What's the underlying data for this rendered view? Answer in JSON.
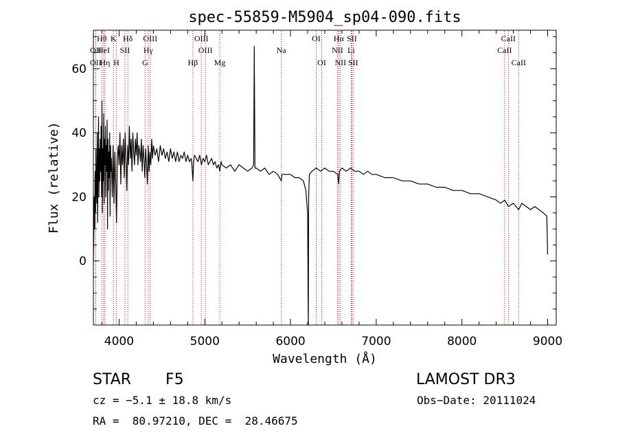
{
  "chart_data": {
    "type": "line",
    "title": "spec-55859-M5904_sp04-090.fits",
    "xlabel": "Wavelength (Å)",
    "ylabel": "Flux (relative)",
    "xlim": [
      3700,
      9100
    ],
    "ylim": [
      -20,
      72
    ],
    "xticks": [
      4000,
      5000,
      6000,
      7000,
      8000,
      9000
    ],
    "yticks": [
      0,
      20,
      40,
      60
    ],
    "series": [
      {
        "name": "spectrum",
        "points": [
          [
            3700,
            0
          ],
          [
            3705,
            8
          ],
          [
            3710,
            20
          ],
          [
            3715,
            10
          ],
          [
            3720,
            28
          ],
          [
            3725,
            15
          ],
          [
            3730,
            35
          ],
          [
            3735,
            22
          ],
          [
            3740,
            18
          ],
          [
            3745,
            40
          ],
          [
            3750,
            12
          ],
          [
            3755,
            30
          ],
          [
            3760,
            45
          ],
          [
            3765,
            20
          ],
          [
            3770,
            35
          ],
          [
            3775,
            25
          ],
          [
            3780,
            38
          ],
          [
            3785,
            28
          ],
          [
            3790,
            42
          ],
          [
            3795,
            20
          ],
          [
            3800,
            50
          ],
          [
            3805,
            15
          ],
          [
            3810,
            35
          ],
          [
            3815,
            25
          ],
          [
            3820,
            46
          ],
          [
            3825,
            18
          ],
          [
            3830,
            38
          ],
          [
            3835,
            30
          ],
          [
            3840,
            42
          ],
          [
            3845,
            20
          ],
          [
            3850,
            36
          ],
          [
            3855,
            28
          ],
          [
            3860,
            44
          ],
          [
            3865,
            10
          ],
          [
            3870,
            38
          ],
          [
            3875,
            22
          ],
          [
            3880,
            34
          ],
          [
            3885,
            26
          ],
          [
            3890,
            40
          ],
          [
            3895,
            14
          ],
          [
            3900,
            36
          ],
          [
            3905,
            28
          ],
          [
            3910,
            32
          ],
          [
            3920,
            20
          ],
          [
            3930,
            36
          ],
          [
            3940,
            18
          ],
          [
            3950,
            34
          ],
          [
            3960,
            24
          ],
          [
            3970,
            12
          ],
          [
            3980,
            32
          ],
          [
            3990,
            36
          ],
          [
            4000,
            30
          ],
          [
            4010,
            40
          ],
          [
            4020,
            24
          ],
          [
            4030,
            36
          ],
          [
            4040,
            30
          ],
          [
            4050,
            38
          ],
          [
            4060,
            26
          ],
          [
            4070,
            40
          ],
          [
            4080,
            32
          ],
          [
            4090,
            22
          ],
          [
            4100,
            36
          ],
          [
            4110,
            30
          ],
          [
            4120,
            42
          ],
          [
            4130,
            32
          ],
          [
            4140,
            38
          ],
          [
            4150,
            28
          ],
          [
            4160,
            40
          ],
          [
            4170,
            34
          ],
          [
            4180,
            30
          ],
          [
            4190,
            38
          ],
          [
            4200,
            33
          ],
          [
            4210,
            40
          ],
          [
            4220,
            30
          ],
          [
            4230,
            36
          ],
          [
            4240,
            34
          ],
          [
            4250,
            31
          ],
          [
            4260,
            38
          ],
          [
            4270,
            28
          ],
          [
            4280,
            36
          ],
          [
            4290,
            32
          ],
          [
            4300,
            26
          ],
          [
            4310,
            35
          ],
          [
            4320,
            30
          ],
          [
            4330,
            24
          ],
          [
            4340,
            36
          ],
          [
            4350,
            28
          ],
          [
            4360,
            34
          ],
          [
            4370,
            30
          ],
          [
            4380,
            38
          ],
          [
            4390,
            32
          ],
          [
            4400,
            36
          ],
          [
            4420,
            33
          ],
          [
            4440,
            35
          ],
          [
            4460,
            31
          ],
          [
            4480,
            36
          ],
          [
            4500,
            33
          ],
          [
            4520,
            35
          ],
          [
            4540,
            32
          ],
          [
            4560,
            34
          ],
          [
            4580,
            31
          ],
          [
            4600,
            35
          ],
          [
            4620,
            32
          ],
          [
            4640,
            34
          ],
          [
            4660,
            31
          ],
          [
            4680,
            34
          ],
          [
            4700,
            31
          ],
          [
            4720,
            33
          ],
          [
            4740,
            32
          ],
          [
            4760,
            34
          ],
          [
            4780,
            31
          ],
          [
            4800,
            33
          ],
          [
            4820,
            31
          ],
          [
            4840,
            32
          ],
          [
            4850,
            30
          ],
          [
            4861,
            25
          ],
          [
            4870,
            31
          ],
          [
            4880,
            33
          ],
          [
            4900,
            32
          ],
          [
            4920,
            31
          ],
          [
            4940,
            33
          ],
          [
            4960,
            30
          ],
          [
            4980,
            32
          ],
          [
            5000,
            31
          ],
          [
            5020,
            33
          ],
          [
            5040,
            30
          ],
          [
            5060,
            31
          ],
          [
            5080,
            32
          ],
          [
            5100,
            30
          ],
          [
            5120,
            31
          ],
          [
            5140,
            29
          ],
          [
            5160,
            30
          ],
          [
            5175,
            28
          ],
          [
            5190,
            31
          ],
          [
            5200,
            30
          ],
          [
            5250,
            29
          ],
          [
            5300,
            30
          ],
          [
            5350,
            28
          ],
          [
            5400,
            30
          ],
          [
            5450,
            29
          ],
          [
            5500,
            28
          ],
          [
            5550,
            29
          ],
          [
            5570,
            30
          ],
          [
            5577,
            67
          ],
          [
            5585,
            29
          ],
          [
            5600,
            29
          ],
          [
            5650,
            28
          ],
          [
            5700,
            29
          ],
          [
            5750,
            27
          ],
          [
            5800,
            28
          ],
          [
            5850,
            27
          ],
          [
            5893,
            25
          ],
          [
            5900,
            27
          ],
          [
            5950,
            27
          ],
          [
            6000,
            27
          ],
          [
            6050,
            26
          ],
          [
            6100,
            26
          ],
          [
            6150,
            25
          ],
          [
            6180,
            22
          ],
          [
            6190,
            18
          ],
          [
            6200,
            15
          ],
          [
            6206,
            -15
          ],
          [
            6208,
            -20
          ],
          [
            6212,
            20
          ],
          [
            6220,
            27
          ],
          [
            6250,
            28
          ],
          [
            6300,
            29
          ],
          [
            6350,
            28
          ],
          [
            6400,
            29
          ],
          [
            6450,
            28
          ],
          [
            6500,
            28
          ],
          [
            6550,
            27
          ],
          [
            6563,
            24
          ],
          [
            6570,
            28
          ],
          [
            6600,
            29
          ],
          [
            6650,
            28
          ],
          [
            6700,
            29
          ],
          [
            6750,
            28
          ],
          [
            6800,
            28
          ],
          [
            6850,
            27
          ],
          [
            6900,
            28
          ],
          [
            6950,
            27
          ],
          [
            7000,
            27
          ],
          [
            7100,
            26
          ],
          [
            7200,
            26
          ],
          [
            7300,
            25
          ],
          [
            7400,
            25
          ],
          [
            7500,
            24
          ],
          [
            7600,
            24
          ],
          [
            7700,
            23
          ],
          [
            7800,
            23
          ],
          [
            7900,
            22
          ],
          [
            8000,
            22
          ],
          [
            8100,
            21
          ],
          [
            8200,
            21
          ],
          [
            8300,
            20
          ],
          [
            8400,
            19
          ],
          [
            8450,
            18
          ],
          [
            8500,
            19
          ],
          [
            8542,
            17
          ],
          [
            8600,
            18
          ],
          [
            8662,
            16
          ],
          [
            8700,
            18
          ],
          [
            8750,
            17
          ],
          [
            8800,
            16
          ],
          [
            8850,
            17
          ],
          [
            8900,
            16
          ],
          [
            8950,
            15
          ],
          [
            8990,
            14
          ],
          [
            9000,
            2
          ]
        ]
      }
    ],
    "lines": [
      {
        "label": "Hθ",
        "x": 3798,
        "row": 0,
        "color": "#ff0000"
      },
      {
        "label": "OII",
        "x": 3727,
        "row": 1,
        "color": "#ff0000"
      },
      {
        "label": "OII",
        "x": 3727,
        "row": 2,
        "color": "#ff0000"
      },
      {
        "label": "HeI",
        "x": 3820,
        "row": 1,
        "color": "#ff0000"
      },
      {
        "label": "Hη",
        "x": 3835,
        "row": 2,
        "color": "#ff0000"
      },
      {
        "label": "K",
        "x": 3934,
        "row": 0,
        "color": "#ff0000"
      },
      {
        "label": "SII",
        "x": 4068,
        "row": 1,
        "color": "#ff0000"
      },
      {
        "label": "H",
        "x": 3968,
        "row": 2,
        "color": "#ff0000"
      },
      {
        "label": "Hδ",
        "x": 4102,
        "row": 0,
        "color": "#ff0000"
      },
      {
        "label": "OIII",
        "x": 4363,
        "row": 0,
        "color": "#ff0000"
      },
      {
        "label": "Hγ",
        "x": 4340,
        "row": 1,
        "color": "#ff0000"
      },
      {
        "label": "G",
        "x": 4304,
        "row": 2,
        "color": "#ff0000"
      },
      {
        "label": "OIII",
        "x": 4959,
        "row": 0,
        "color": "#ff0000"
      },
      {
        "label": "OIII",
        "x": 5007,
        "row": 1,
        "color": "#ff0000"
      },
      {
        "label": "Hβ",
        "x": 4861,
        "row": 2,
        "color": "#ff0000"
      },
      {
        "label": "Mg",
        "x": 5175,
        "row": 2,
        "color": "#ff0000"
      },
      {
        "label": "Na",
        "x": 5893,
        "row": 1,
        "color": "#ff0000"
      },
      {
        "label": "OI",
        "x": 6300,
        "row": 0,
        "color": "#ff0000"
      },
      {
        "label": "OI",
        "x": 6364,
        "row": 2,
        "color": "#ff0000"
      },
      {
        "label": "Hα",
        "x": 6563,
        "row": 0,
        "color": "#ff0000"
      },
      {
        "label": "SII",
        "x": 6716,
        "row": 0,
        "color": "#ff0000"
      },
      {
        "label": "NII",
        "x": 6548,
        "row": 1,
        "color": "#ff0000"
      },
      {
        "label": "Li",
        "x": 6708,
        "row": 1,
        "color": "#ff0000"
      },
      {
        "label": "NII",
        "x": 6583,
        "row": 2,
        "color": "#ff0000"
      },
      {
        "label": "SII",
        "x": 6731,
        "row": 2,
        "color": "#ff0000"
      },
      {
        "label": "CaII",
        "x": 8542,
        "row": 0,
        "color": "#ff0000"
      },
      {
        "label": "CaII",
        "x": 8498,
        "row": 1,
        "color": "#ff0000"
      },
      {
        "label": "CaII",
        "x": 8662,
        "row": 2,
        "color": "#ff0000"
      }
    ]
  },
  "info": {
    "object_class": "STAR",
    "subclass": "F5",
    "survey": "LAMOST DR3",
    "velocity": "cz = −5.1 ± 18.8 km/s",
    "obs_date": "Obs−Date: 20111024",
    "coords": "RA =  80.97210, DEC =  28.46675"
  }
}
